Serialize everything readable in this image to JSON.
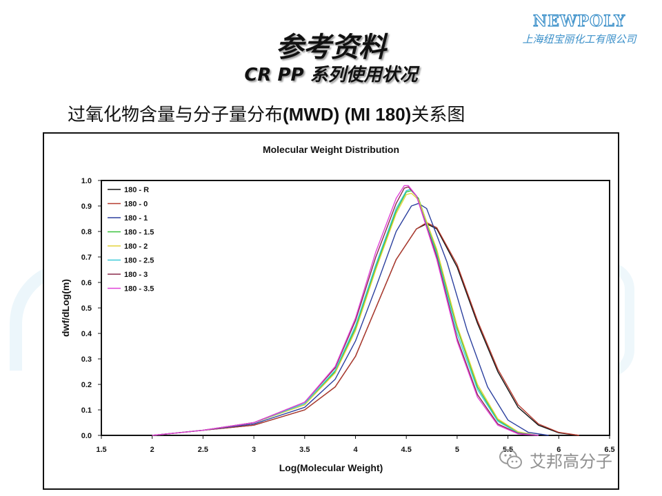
{
  "slide": {
    "title": "参考资料",
    "subtitle": "CR PP 系列使用状况",
    "heading_prefix": "过氧化物含量与分子量分布",
    "heading_bold": "(MWD) (MI 180)",
    "heading_suffix": "关系图"
  },
  "logo": {
    "name": "NEWPOLY",
    "company": "上海纽宝丽化工有限公司",
    "color": "#3a8fc9"
  },
  "watermark": {
    "icon": "wechat-icon",
    "text": "艾邦高分子"
  },
  "chart_data": {
    "type": "line",
    "title": "Molecular Weight Distribution",
    "xlabel": "Log(Molecular Weight)",
    "ylabel": "dwf/dLog(m)",
    "xlim": [
      1.5,
      6.5
    ],
    "ylim": [
      0.0,
      1.0
    ],
    "xticks": [
      "1.5",
      "2",
      "2.5",
      "3",
      "3.5",
      "4",
      "4.5",
      "5",
      "5.5",
      "6",
      "6.5"
    ],
    "yticks": [
      "0.0",
      "0.1",
      "0.2",
      "0.3",
      "0.4",
      "0.5",
      "0.6",
      "0.7",
      "0.8",
      "0.9",
      "1.0"
    ],
    "grid": false,
    "legend_position": "top-left",
    "series": [
      {
        "name": "180 - R",
        "color": "#111111",
        "points": [
          [
            2.0,
            0.0
          ],
          [
            2.5,
            0.02
          ],
          [
            3.0,
            0.04
          ],
          [
            3.5,
            0.1
          ],
          [
            3.8,
            0.19
          ],
          [
            4.0,
            0.31
          ],
          [
            4.2,
            0.5
          ],
          [
            4.4,
            0.69
          ],
          [
            4.6,
            0.81
          ],
          [
            4.7,
            0.83
          ],
          [
            4.8,
            0.81
          ],
          [
            5.0,
            0.66
          ],
          [
            5.2,
            0.44
          ],
          [
            5.4,
            0.25
          ],
          [
            5.6,
            0.11
          ],
          [
            5.8,
            0.04
          ],
          [
            6.0,
            0.01
          ],
          [
            6.2,
            0.0
          ]
        ]
      },
      {
        "name": "180 - 0",
        "color": "#b53a2e",
        "points": [
          [
            2.0,
            0.0
          ],
          [
            2.5,
            0.02
          ],
          [
            3.0,
            0.04
          ],
          [
            3.5,
            0.1
          ],
          [
            3.8,
            0.19
          ],
          [
            4.0,
            0.31
          ],
          [
            4.2,
            0.5
          ],
          [
            4.4,
            0.69
          ],
          [
            4.6,
            0.81
          ],
          [
            4.7,
            0.835
          ],
          [
            4.8,
            0.815
          ],
          [
            5.0,
            0.67
          ],
          [
            5.2,
            0.45
          ],
          [
            5.4,
            0.26
          ],
          [
            5.6,
            0.12
          ],
          [
            5.8,
            0.045
          ],
          [
            6.0,
            0.012
          ],
          [
            6.2,
            0.0
          ]
        ]
      },
      {
        "name": "180 - 1",
        "color": "#2b3f9e",
        "points": [
          [
            2.0,
            0.0
          ],
          [
            2.5,
            0.02
          ],
          [
            3.0,
            0.045
          ],
          [
            3.5,
            0.11
          ],
          [
            3.8,
            0.22
          ],
          [
            4.0,
            0.37
          ],
          [
            4.2,
            0.58
          ],
          [
            4.4,
            0.8
          ],
          [
            4.55,
            0.9
          ],
          [
            4.62,
            0.91
          ],
          [
            4.7,
            0.89
          ],
          [
            4.9,
            0.68
          ],
          [
            5.1,
            0.41
          ],
          [
            5.3,
            0.19
          ],
          [
            5.5,
            0.06
          ],
          [
            5.7,
            0.012
          ],
          [
            5.9,
            0.0
          ]
        ]
      },
      {
        "name": "180 - 1.5",
        "color": "#39c13c",
        "points": [
          [
            2.0,
            0.0
          ],
          [
            2.5,
            0.02
          ],
          [
            3.0,
            0.05
          ],
          [
            3.5,
            0.12
          ],
          [
            3.8,
            0.25
          ],
          [
            4.0,
            0.42
          ],
          [
            4.2,
            0.66
          ],
          [
            4.4,
            0.88
          ],
          [
            4.5,
            0.955
          ],
          [
            4.55,
            0.96
          ],
          [
            4.62,
            0.93
          ],
          [
            4.8,
            0.72
          ],
          [
            5.0,
            0.42
          ],
          [
            5.2,
            0.19
          ],
          [
            5.4,
            0.06
          ],
          [
            5.6,
            0.012
          ],
          [
            5.8,
            0.0
          ]
        ]
      },
      {
        "name": "180 - 2",
        "color": "#e4d33a",
        "points": [
          [
            2.0,
            0.0
          ],
          [
            2.5,
            0.02
          ],
          [
            3.0,
            0.05
          ],
          [
            3.5,
            0.12
          ],
          [
            3.8,
            0.245
          ],
          [
            4.0,
            0.41
          ],
          [
            4.2,
            0.65
          ],
          [
            4.4,
            0.87
          ],
          [
            4.5,
            0.945
          ],
          [
            4.55,
            0.95
          ],
          [
            4.62,
            0.925
          ],
          [
            4.8,
            0.73
          ],
          [
            5.0,
            0.43
          ],
          [
            5.2,
            0.2
          ],
          [
            5.4,
            0.065
          ],
          [
            5.6,
            0.014
          ],
          [
            5.8,
            0.0
          ]
        ]
      },
      {
        "name": "180 - 2.5",
        "color": "#3cc9d8",
        "points": [
          [
            2.0,
            0.0
          ],
          [
            2.5,
            0.02
          ],
          [
            3.0,
            0.05
          ],
          [
            3.5,
            0.125
          ],
          [
            3.8,
            0.255
          ],
          [
            4.0,
            0.43
          ],
          [
            4.2,
            0.67
          ],
          [
            4.4,
            0.89
          ],
          [
            4.5,
            0.96
          ],
          [
            4.54,
            0.965
          ],
          [
            4.6,
            0.94
          ],
          [
            4.8,
            0.71
          ],
          [
            5.0,
            0.4
          ],
          [
            5.2,
            0.18
          ],
          [
            5.4,
            0.055
          ],
          [
            5.6,
            0.01
          ],
          [
            5.8,
            0.0
          ]
        ]
      },
      {
        "name": "180 - 3",
        "color": "#8a2a4a",
        "points": [
          [
            2.0,
            0.0
          ],
          [
            2.5,
            0.02
          ],
          [
            3.0,
            0.05
          ],
          [
            3.5,
            0.13
          ],
          [
            3.8,
            0.265
          ],
          [
            4.0,
            0.45
          ],
          [
            4.2,
            0.7
          ],
          [
            4.4,
            0.91
          ],
          [
            4.48,
            0.97
          ],
          [
            4.52,
            0.975
          ],
          [
            4.6,
            0.94
          ],
          [
            4.8,
            0.7
          ],
          [
            5.0,
            0.38
          ],
          [
            5.2,
            0.16
          ],
          [
            5.4,
            0.045
          ],
          [
            5.6,
            0.008
          ],
          [
            5.8,
            0.0
          ]
        ]
      },
      {
        "name": "180 - 3.5",
        "color": "#e040d8",
        "points": [
          [
            2.0,
            0.0
          ],
          [
            2.5,
            0.02
          ],
          [
            3.0,
            0.05
          ],
          [
            3.5,
            0.13
          ],
          [
            3.8,
            0.27
          ],
          [
            4.0,
            0.46
          ],
          [
            4.2,
            0.72
          ],
          [
            4.4,
            0.93
          ],
          [
            4.48,
            0.98
          ],
          [
            4.52,
            0.98
          ],
          [
            4.6,
            0.94
          ],
          [
            4.8,
            0.69
          ],
          [
            5.0,
            0.37
          ],
          [
            5.2,
            0.15
          ],
          [
            5.4,
            0.04
          ],
          [
            5.6,
            0.006
          ],
          [
            5.8,
            0.0
          ]
        ]
      }
    ]
  }
}
